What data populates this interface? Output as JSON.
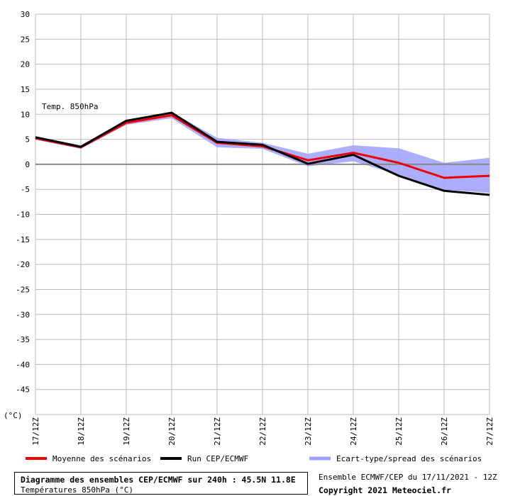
{
  "chart_data": {
    "type": "line",
    "label": "Temp. 850hPa",
    "unit_label": "(°C)",
    "categories": [
      "17/12Z",
      "18/12Z",
      "19/12Z",
      "20/12Z",
      "21/12Z",
      "22/12Z",
      "23/12Z",
      "24/12Z",
      "25/12Z",
      "26/12Z",
      "27/12Z"
    ],
    "ylim": [
      -50,
      30
    ],
    "yticks": [
      30,
      25,
      20,
      15,
      10,
      5,
      0,
      -5,
      -10,
      -15,
      -20,
      -25,
      -30,
      -35,
      -40,
      -45
    ],
    "grid": true,
    "series": [
      {
        "name": "Moyenne des scénarios",
        "color": "#ee0000",
        "values": [
          5.2,
          3.4,
          8.3,
          9.8,
          4.3,
          3.6,
          0.8,
          2.3,
          0.3,
          -2.7,
          -2.3
        ]
      },
      {
        "name": "Run CEP/ECMWF",
        "color": "#000000",
        "values": [
          5.4,
          3.5,
          8.7,
          10.3,
          4.5,
          3.9,
          0.1,
          1.9,
          -2.3,
          -5.3,
          -6.1
        ]
      }
    ],
    "spread": {
      "name": "Ecart-type/spread des scénarios",
      "color": "#a0a0ff",
      "upper": [
        5.6,
        3.8,
        8.8,
        10.4,
        5.3,
        4.3,
        2.1,
        3.8,
        3.2,
        0.3,
        1.3
      ],
      "lower": [
        4.9,
        3.1,
        7.9,
        9.2,
        3.4,
        3.1,
        -0.4,
        0.6,
        -2.1,
        -5.1,
        -5.7
      ]
    }
  },
  "footer": {
    "title": "Diagramme des ensembles CEP/ECMWF sur 240h : 45.5N 11.8E",
    "subtitle": "Températures 850hPa (°C)",
    "run_info": "Ensemble ECMWF/CEP du 17/11/2021 - 12Z",
    "copyright": "Copyright 2021 Meteociel.fr"
  }
}
